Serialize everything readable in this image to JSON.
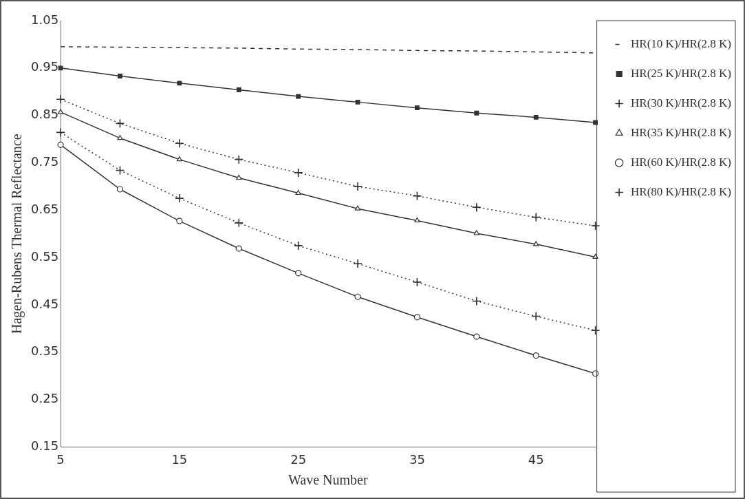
{
  "chart_data": {
    "type": "line",
    "xlabel": "Wave Number",
    "ylabel": "Hagen-Rubens Thermal Reflectance",
    "x": [
      5,
      10,
      15,
      20,
      25,
      30,
      35,
      40,
      45,
      50
    ],
    "series": [
      {
        "name": "HR(10 K)/HR(2.8 K)",
        "color": "#333333",
        "marker": "none",
        "line_style": "dashed",
        "values": [
          0.995,
          0.994,
          0.993,
          0.992,
          0.99,
          0.989,
          0.987,
          0.986,
          0.984,
          0.982
        ]
      },
      {
        "name": "HR(25 K)/HR(2.8 K)",
        "color": "#333333",
        "marker": "square",
        "line_style": "solid",
        "values": [
          0.95,
          0.933,
          0.918,
          0.904,
          0.89,
          0.878,
          0.866,
          0.855,
          0.846,
          0.835
        ]
      },
      {
        "name": "HR(30 K)/HR(2.8 K)",
        "color": "#333333",
        "marker": "cross",
        "line_style": "dotted",
        "values": [
          0.884,
          0.833,
          0.791,
          0.757,
          0.729,
          0.7,
          0.68,
          0.656,
          0.635,
          0.617
        ]
      },
      {
        "name": "HR(35 K)/HR(2.8 K)",
        "color": "#333333",
        "marker": "triangle",
        "line_style": "solid",
        "values": [
          0.857,
          0.802,
          0.757,
          0.718,
          0.686,
          0.653,
          0.628,
          0.601,
          0.578,
          0.551
        ]
      },
      {
        "name": "HR(60 K)/HR(2.8 K)",
        "color": "#333333",
        "marker": "circle",
        "line_style": "solid",
        "values": [
          0.788,
          0.694,
          0.627,
          0.569,
          0.517,
          0.467,
          0.424,
          0.383,
          0.343,
          0.305
        ]
      },
      {
        "name": "HR(80 K)/HR(2.8 K)",
        "color": "#333333",
        "marker": "cross",
        "line_style": "dotted",
        "values": [
          0.814,
          0.734,
          0.675,
          0.623,
          0.575,
          0.537,
          0.498,
          0.458,
          0.426,
          0.396
        ]
      }
    ],
    "xlim": [
      5,
      50
    ],
    "xticks": [
      5,
      15,
      25,
      35,
      45
    ],
    "ylim": [
      0.15,
      1.05
    ],
    "yticks": [
      {
        "value": 0.15,
        "label": "0.15"
      },
      {
        "value": 0.25,
        "label": "0.25"
      },
      {
        "value": 0.35,
        "label": "0.35"
      },
      {
        "value": 0.45,
        "label": "0.45"
      },
      {
        "value": 0.55,
        "label": "0.55"
      },
      {
        "value": 0.65,
        "label": "0.65"
      },
      {
        "value": 0.75,
        "label": "0.75"
      },
      {
        "value": 0.85,
        "label": "0.85"
      },
      {
        "value": 0.95,
        "label": "0.95"
      },
      {
        "value": 1.05,
        "label": "1.05"
      }
    ],
    "grid": false,
    "legend": "right"
  }
}
